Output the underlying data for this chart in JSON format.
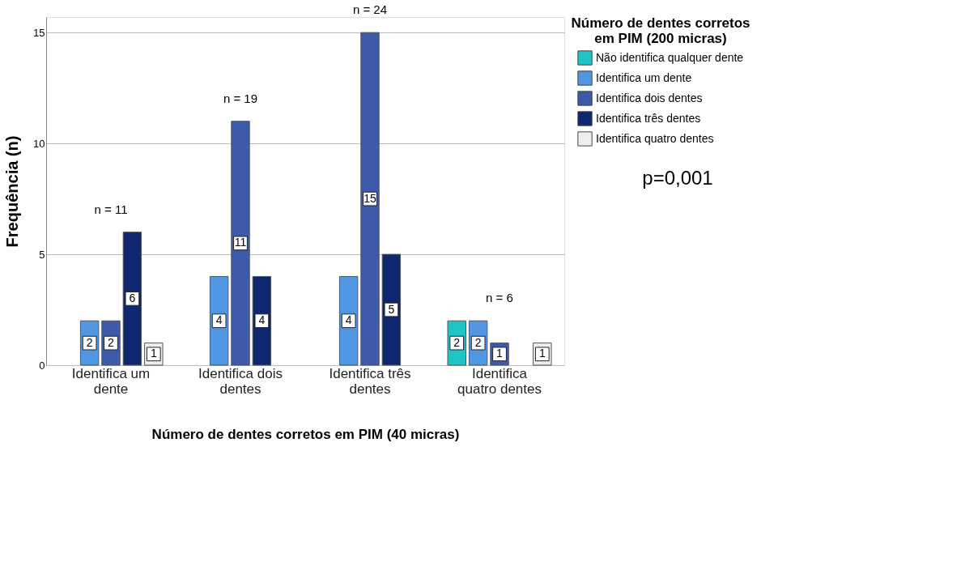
{
  "chart_data": {
    "type": "bar",
    "xlabel": "Número de dentes corretos em PIM (40 micras)",
    "ylabel": "Frequência (n)",
    "legend_title": "Número de dentes corretos em PIM (200 micras)",
    "categories": [
      "Identifica um dente",
      "Identifica dois dentes",
      "Identifica três dentes",
      "Identifica quatro dentes"
    ],
    "series": [
      {
        "name": "Não identifica qualquer dente",
        "color": "#1fc4c4",
        "values": [
          null,
          null,
          null,
          2
        ]
      },
      {
        "name": "Identifica um dente",
        "color": "#5096e2",
        "values": [
          2,
          4,
          4,
          2
        ]
      },
      {
        "name": "Identifica dois dentes",
        "color": "#3d5aa8",
        "values": [
          2,
          11,
          15,
          1
        ]
      },
      {
        "name": "Identifica três dentes",
        "color": "#0e2870",
        "values": [
          6,
          4,
          5,
          null
        ]
      },
      {
        "name": "Identifica quatro dentes",
        "color": "#eeeeee",
        "values": [
          1,
          null,
          null,
          1
        ]
      }
    ],
    "ylim": [
      0,
      15.7
    ],
    "yticks": [
      0,
      5,
      10,
      15
    ],
    "grid": "y",
    "legend": "top right",
    "data_labels": true,
    "annotations": [
      "n = 11",
      "n = 19",
      "n = 24",
      "n = 6",
      "p=0,001"
    ]
  }
}
